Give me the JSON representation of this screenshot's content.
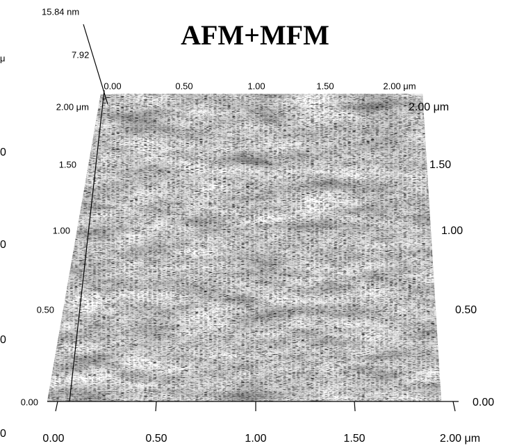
{
  "title": "AFM+MFM",
  "z_scale": {
    "max_label": "15.84 nm",
    "mid_label": "7.92",
    "unit_fragment": "μ"
  },
  "left_edge_fragments": [
    "0",
    "0",
    "0",
    "0"
  ],
  "top_axis": [
    "0.00",
    "0.50",
    "1.00",
    "1.50",
    "2.00 μm"
  ],
  "left_axis": [
    "2.00 μm",
    "1.50",
    "1.00",
    "0.50",
    "0.00"
  ],
  "right_axis": [
    "2.00 μm",
    "1.50",
    "1.00",
    "0.50",
    "0.00"
  ],
  "bottom_axis": [
    "0.00",
    "0.50",
    "1.00",
    "1.50",
    "2.00 μm"
  ]
}
